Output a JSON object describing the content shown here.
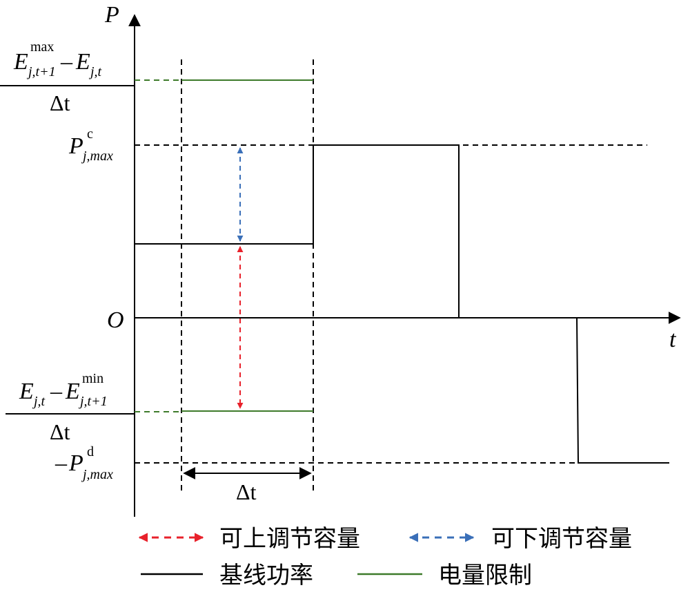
{
  "axes": {
    "y_label": "P",
    "x_label": "t",
    "origin_label": "O"
  },
  "labels": {
    "e_upper_num_E1": "E",
    "e_upper_num_E1_sup": "max",
    "e_upper_num_E1_sub": "j,t+1",
    "e_upper_num_minus": "–",
    "e_upper_num_E2": "E",
    "e_upper_num_E2_sub": "j,t",
    "e_upper_den": "Δt",
    "pc_P": "P",
    "pc_sup": "c",
    "pc_sub": "j,max",
    "e_lower_num_E1": "E",
    "e_lower_num_E1_sub": "j,t",
    "e_lower_num_minus": "–",
    "e_lower_num_E2": "E",
    "e_lower_num_E2_sup": "min",
    "e_lower_num_E2_sub": "j,t+1",
    "e_lower_den": "Δt",
    "pd_minus": "–",
    "pd_P": "P",
    "pd_sup": "d",
    "pd_sub": "j,max",
    "delta_t_interval": "Δt"
  },
  "legend": {
    "up_capacity": "可上调节容量",
    "down_capacity": "可下调节容量",
    "baseline_power": "基线功率",
    "energy_limit": "电量限制"
  },
  "colors": {
    "up_arrow": "#e8212b",
    "down_arrow": "#3a6fb8",
    "baseline": "#000000",
    "energy_limit": "#3d7a2a"
  }
}
